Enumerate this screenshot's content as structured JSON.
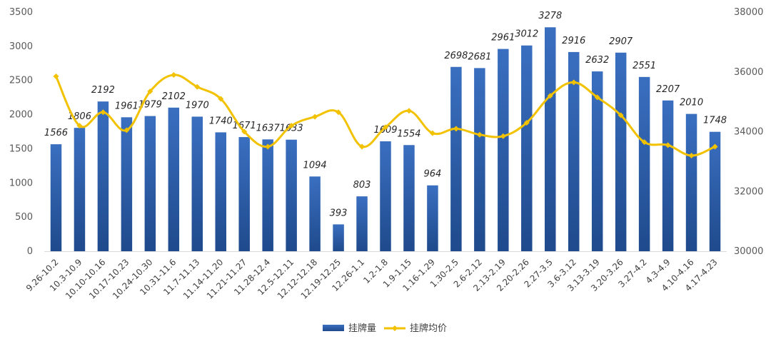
{
  "chart_data": {
    "type": "bar",
    "categories": [
      "9.26-10.2",
      "10.3-10.9",
      "10.10-10.16",
      "10.17-10.23",
      "10.24-10.30",
      "10.31-11.6",
      "11.7-11.13",
      "11.14-11.20",
      "11.21-11.27",
      "11.28-12.4",
      "12.5-12.11",
      "12.12-12.18",
      "12.19-12.25",
      "12.26-1.1",
      "1.2-1.8",
      "1.9-1.15",
      "1.16-1.29",
      "1.30-2.5",
      "2.6-2.12",
      "2.13-2.19",
      "2.20-2.26",
      "2.27-3.5",
      "3.6-3.12",
      "3.13-3.19",
      "3.20-3.26",
      "3.27-4.2",
      "4.3-4.9",
      "4.10-4.16",
      "4.17-4.23"
    ],
    "series": [
      {
        "name": "挂牌量",
        "type": "bar",
        "axis": "left",
        "color": "#2e5ea8",
        "values": [
          1566,
          1806,
          2192,
          1961,
          1979,
          2102,
          1970,
          1740,
          1671,
          1637,
          1633,
          1094,
          393,
          803,
          1609,
          1554,
          964,
          2698,
          2681,
          2961,
          3012,
          3278,
          2916,
          2632,
          2907,
          2551,
          2207,
          2010,
          1748
        ]
      },
      {
        "name": "挂牌均价",
        "type": "line",
        "axis": "right",
        "color": "#f2c200",
        "values": [
          35850,
          34200,
          34650,
          34050,
          35350,
          35900,
          35500,
          35100,
          34000,
          33500,
          34200,
          34500,
          34650,
          33500,
          34150,
          34700,
          33950,
          34100,
          33900,
          33850,
          34300,
          35200,
          35650,
          35150,
          34550,
          33650,
          33550,
          33200,
          33500
        ]
      }
    ],
    "data_labels": [
      "1566",
      "1806",
      "2192",
      "1961",
      "1979",
      "2102",
      "1970",
      "1740",
      "1671",
      "1637",
      "1633",
      "1094",
      "393",
      "803",
      "1609",
      "1554",
      "964",
      "2698",
      "2681",
      "2961",
      "3012",
      "3278",
      "2916",
      "2632",
      "2907",
      "2551",
      "2207",
      "2010",
      "1748"
    ],
    "left_axis": {
      "min": 0,
      "max": 3500,
      "step": 500,
      "ticks": [
        "0",
        "500",
        "1000",
        "1500",
        "2000",
        "2500",
        "3000",
        "3500"
      ]
    },
    "right_axis": {
      "min": 30000,
      "max": 38000,
      "step": 2000,
      "ticks": [
        "30000",
        "32000",
        "34000",
        "36000",
        "38000"
      ]
    },
    "title": "",
    "xlabel": "",
    "ylabel": "",
    "grid": false,
    "legend_position": "bottom-center"
  }
}
